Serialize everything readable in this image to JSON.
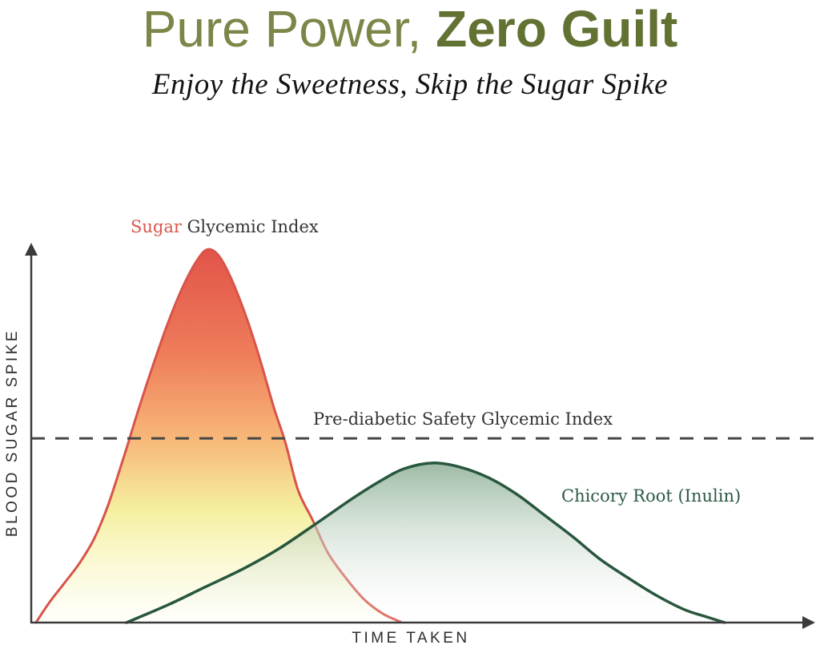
{
  "header": {
    "title_regular": "Pure Power, ",
    "title_bold": "Zero Guilt",
    "subtitle": "Enjoy the Sweetness, Skip the Sugar Spike",
    "title_color_regular": "#7a8748",
    "title_color_bold": "#617232"
  },
  "chart_data": {
    "type": "area",
    "title": "Pure Power, Zero Guilt",
    "subtitle": "Enjoy the Sweetness, Skip the Sugar Spike",
    "xlabel": "TIME TAKEN",
    "ylabel": "BLOOD SUGAR SPIKE",
    "axis_color": "#3b3b3b",
    "x_range_note": "unitless time axis, no ticks",
    "y_range_note": "unitless spike axis, 0 = baseline, 1 = top of plot",
    "threshold": {
      "label": "Pre-diabetic Safety Glycemic Index",
      "value": 0.487,
      "color": "#474747",
      "dash": "17 13"
    },
    "series": [
      {
        "name": "Sugar Glycemic Index",
        "label_accent": "Sugar",
        "label_rest": " Glycemic Index",
        "accent_color": "#d8574b",
        "stroke": "#d8544a",
        "stroke_width": 3,
        "peak": {
          "x": 0.225,
          "y": 0.987
        },
        "gradient": [
          [
            0,
            "#e25349"
          ],
          [
            0.28,
            "#ee7d5a"
          ],
          [
            0.5,
            "#f7b577"
          ],
          [
            0.7,
            "#f5f0a0"
          ],
          [
            1,
            "rgba(255,255,248,0.6)"
          ]
        ],
        "points": [
          [
            0.006,
            0.0
          ],
          [
            0.023,
            0.053
          ],
          [
            0.042,
            0.104
          ],
          [
            0.062,
            0.159
          ],
          [
            0.08,
            0.222
          ],
          [
            0.096,
            0.301
          ],
          [
            0.108,
            0.375
          ],
          [
            0.121,
            0.46
          ],
          [
            0.135,
            0.555
          ],
          [
            0.154,
            0.676
          ],
          [
            0.174,
            0.794
          ],
          [
            0.194,
            0.894
          ],
          [
            0.212,
            0.962
          ],
          [
            0.225,
            0.987
          ],
          [
            0.239,
            0.968
          ],
          [
            0.255,
            0.905
          ],
          [
            0.274,
            0.803
          ],
          [
            0.291,
            0.693
          ],
          [
            0.308,
            0.57
          ],
          [
            0.323,
            0.475
          ],
          [
            0.339,
            0.35
          ],
          [
            0.357,
            0.273
          ],
          [
            0.377,
            0.184
          ],
          [
            0.4,
            0.117
          ],
          [
            0.423,
            0.061
          ],
          [
            0.447,
            0.023
          ],
          [
            0.469,
            0.002
          ]
        ]
      },
      {
        "name": "Chicory Root (Inulin)",
        "label_color": "#2c5a44",
        "stroke": "#28573e",
        "stroke_width": 3.5,
        "peak": {
          "x": 0.51,
          "y": 0.422
        },
        "gradient": [
          [
            0,
            "rgba(148,180,156,0.92)"
          ],
          [
            1,
            "rgba(255,255,255,0.15)"
          ]
        ],
        "points": [
          [
            0.121,
            0.0
          ],
          [
            0.174,
            0.047
          ],
          [
            0.22,
            0.093
          ],
          [
            0.271,
            0.144
          ],
          [
            0.316,
            0.197
          ],
          [
            0.367,
            0.269
          ],
          [
            0.408,
            0.328
          ],
          [
            0.444,
            0.375
          ],
          [
            0.474,
            0.407
          ],
          [
            0.51,
            0.422
          ],
          [
            0.545,
            0.411
          ],
          [
            0.581,
            0.383
          ],
          [
            0.617,
            0.339
          ],
          [
            0.652,
            0.284
          ],
          [
            0.688,
            0.227
          ],
          [
            0.723,
            0.167
          ],
          [
            0.759,
            0.117
          ],
          [
            0.794,
            0.072
          ],
          [
            0.83,
            0.034
          ],
          [
            0.858,
            0.015
          ],
          [
            0.881,
            0.0
          ]
        ]
      }
    ],
    "legend_position": "labels annotated next to curves"
  }
}
